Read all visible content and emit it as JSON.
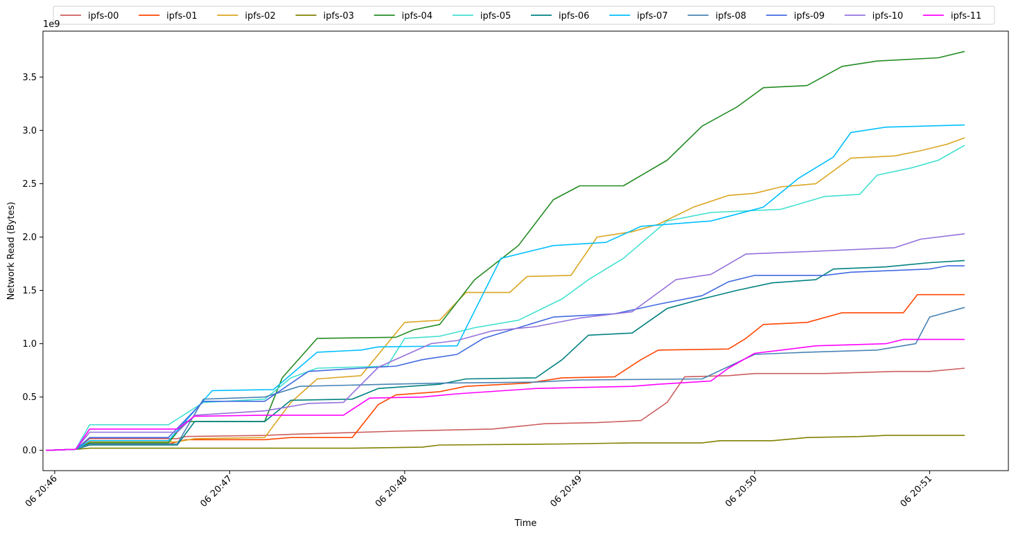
{
  "chart_data": {
    "type": "line",
    "title": "",
    "xlabel": "Time",
    "ylabel": "Network Read (Bytes)",
    "y_offset_label": "1e9",
    "y_unit_scale": 1000000000,
    "x_unit": "minutes",
    "xlim": [
      45.933,
      51.45
    ],
    "ylim": [
      -0.19,
      3.93
    ],
    "x_ticks": [
      {
        "value": 46,
        "label": "06 20:46"
      },
      {
        "value": 47,
        "label": "06 20:47"
      },
      {
        "value": 48,
        "label": "06 20:48"
      },
      {
        "value": 49,
        "label": "06 20:49"
      },
      {
        "value": 50,
        "label": "06 20:50"
      },
      {
        "value": 51,
        "label": "06 20:51"
      }
    ],
    "y_ticks": [
      {
        "value": 0.0,
        "label": "0.0"
      },
      {
        "value": 0.5,
        "label": "0.5"
      },
      {
        "value": 1.0,
        "label": "1.0"
      },
      {
        "value": 1.5,
        "label": "1.5"
      },
      {
        "value": 2.0,
        "label": "2.0"
      },
      {
        "value": 2.5,
        "label": "2.5"
      },
      {
        "value": 3.0,
        "label": "3.0"
      },
      {
        "value": 3.5,
        "label": "3.5"
      }
    ],
    "grid": false,
    "legend_position": "top-center, outside plot",
    "series": [
      {
        "name": "ipfs-00",
        "color": "#cd5c5c",
        "points": [
          [
            45.95,
            0
          ],
          [
            46.12,
            0.01
          ],
          [
            46.2,
            0.11
          ],
          [
            46.7,
            0.11
          ],
          [
            46.75,
            0.13
          ],
          [
            47.2,
            0.14
          ],
          [
            47.35,
            0.15
          ],
          [
            47.95,
            0.18
          ],
          [
            48.5,
            0.2
          ],
          [
            48.8,
            0.25
          ],
          [
            49.1,
            0.26
          ],
          [
            49.35,
            0.28
          ],
          [
            49.5,
            0.45
          ],
          [
            49.6,
            0.69
          ],
          [
            49.85,
            0.7
          ],
          [
            50.0,
            0.72
          ],
          [
            50.4,
            0.72
          ],
          [
            50.8,
            0.74
          ],
          [
            51.0,
            0.74
          ],
          [
            51.2,
            0.77
          ]
        ]
      },
      {
        "name": "ipfs-01",
        "color": "#ff4500",
        "points": [
          [
            45.95,
            0
          ],
          [
            46.12,
            0.01
          ],
          [
            46.2,
            0.06
          ],
          [
            46.65,
            0.06
          ],
          [
            46.75,
            0.1
          ],
          [
            47.2,
            0.1
          ],
          [
            47.35,
            0.12
          ],
          [
            47.7,
            0.12
          ],
          [
            47.85,
            0.43
          ],
          [
            47.95,
            0.52
          ],
          [
            48.2,
            0.55
          ],
          [
            48.35,
            0.6
          ],
          [
            48.7,
            0.63
          ],
          [
            48.9,
            0.68
          ],
          [
            49.2,
            0.69
          ],
          [
            49.35,
            0.85
          ],
          [
            49.45,
            0.94
          ],
          [
            49.85,
            0.95
          ],
          [
            49.95,
            1.05
          ],
          [
            50.05,
            1.18
          ],
          [
            50.3,
            1.2
          ],
          [
            50.5,
            1.29
          ],
          [
            50.85,
            1.29
          ],
          [
            50.93,
            1.46
          ],
          [
            51.2,
            1.46
          ]
        ]
      },
      {
        "name": "ipfs-02",
        "color": "#daa520",
        "points": [
          [
            45.95,
            0
          ],
          [
            46.12,
            0.01
          ],
          [
            46.2,
            0.08
          ],
          [
            46.7,
            0.08
          ],
          [
            46.8,
            0.11
          ],
          [
            47.2,
            0.12
          ],
          [
            47.35,
            0.45
          ],
          [
            47.5,
            0.67
          ],
          [
            47.75,
            0.7
          ],
          [
            47.9,
            1.0
          ],
          [
            48.0,
            1.2
          ],
          [
            48.2,
            1.22
          ],
          [
            48.35,
            1.48
          ],
          [
            48.6,
            1.48
          ],
          [
            48.7,
            1.63
          ],
          [
            48.95,
            1.64
          ],
          [
            49.1,
            2.0
          ],
          [
            49.3,
            2.05
          ],
          [
            49.45,
            2.12
          ],
          [
            49.65,
            2.28
          ],
          [
            49.85,
            2.39
          ],
          [
            50.0,
            2.41
          ],
          [
            50.15,
            2.47
          ],
          [
            50.35,
            2.5
          ],
          [
            50.55,
            2.74
          ],
          [
            50.8,
            2.76
          ],
          [
            50.95,
            2.81
          ],
          [
            51.1,
            2.87
          ],
          [
            51.2,
            2.93
          ]
        ]
      },
      {
        "name": "ipfs-03",
        "color": "#808000",
        "points": [
          [
            45.95,
            0
          ],
          [
            46.12,
            0.01
          ],
          [
            46.2,
            0.02
          ],
          [
            47.2,
            0.02
          ],
          [
            47.7,
            0.02
          ],
          [
            48.1,
            0.03
          ],
          [
            48.2,
            0.05
          ],
          [
            48.9,
            0.06
          ],
          [
            49.3,
            0.07
          ],
          [
            49.7,
            0.07
          ],
          [
            49.8,
            0.09
          ],
          [
            50.1,
            0.09
          ],
          [
            50.3,
            0.12
          ],
          [
            50.6,
            0.13
          ],
          [
            50.75,
            0.14
          ],
          [
            51.2,
            0.14
          ]
        ]
      },
      {
        "name": "ipfs-04",
        "color": "#228b22",
        "points": [
          [
            45.95,
            0
          ],
          [
            46.12,
            0.01
          ],
          [
            46.2,
            0.07
          ],
          [
            46.65,
            0.07
          ],
          [
            46.75,
            0.27
          ],
          [
            47.2,
            0.27
          ],
          [
            47.3,
            0.68
          ],
          [
            47.5,
            1.05
          ],
          [
            47.95,
            1.06
          ],
          [
            48.05,
            1.13
          ],
          [
            48.2,
            1.18
          ],
          [
            48.4,
            1.6
          ],
          [
            48.65,
            1.92
          ],
          [
            48.85,
            2.35
          ],
          [
            49.0,
            2.48
          ],
          [
            49.25,
            2.48
          ],
          [
            49.5,
            2.72
          ],
          [
            49.7,
            3.04
          ],
          [
            49.9,
            3.22
          ],
          [
            50.05,
            3.4
          ],
          [
            50.3,
            3.42
          ],
          [
            50.5,
            3.6
          ],
          [
            50.7,
            3.65
          ],
          [
            51.05,
            3.68
          ],
          [
            51.2,
            3.74
          ]
        ]
      },
      {
        "name": "ipfs-05",
        "color": "#40e0d0",
        "points": [
          [
            45.95,
            0
          ],
          [
            46.12,
            0.01
          ],
          [
            46.2,
            0.24
          ],
          [
            46.65,
            0.24
          ],
          [
            46.85,
            0.45
          ],
          [
            47.2,
            0.48
          ],
          [
            47.35,
            0.68
          ],
          [
            47.5,
            0.77
          ],
          [
            47.9,
            0.79
          ],
          [
            48.0,
            1.05
          ],
          [
            48.2,
            1.07
          ],
          [
            48.4,
            1.15
          ],
          [
            48.65,
            1.22
          ],
          [
            48.9,
            1.42
          ],
          [
            49.05,
            1.6
          ],
          [
            49.25,
            1.8
          ],
          [
            49.5,
            2.15
          ],
          [
            49.75,
            2.23
          ],
          [
            50.15,
            2.26
          ],
          [
            50.4,
            2.38
          ],
          [
            50.6,
            2.4
          ],
          [
            50.7,
            2.58
          ],
          [
            50.9,
            2.65
          ],
          [
            51.05,
            2.72
          ],
          [
            51.2,
            2.86
          ]
        ]
      },
      {
        "name": "ipfs-06",
        "color": "#008080",
        "points": [
          [
            45.95,
            0
          ],
          [
            46.12,
            0.01
          ],
          [
            46.2,
            0.05
          ],
          [
            46.7,
            0.05
          ],
          [
            46.8,
            0.27
          ],
          [
            47.2,
            0.27
          ],
          [
            47.35,
            0.47
          ],
          [
            47.7,
            0.48
          ],
          [
            47.85,
            0.58
          ],
          [
            48.2,
            0.62
          ],
          [
            48.35,
            0.67
          ],
          [
            48.75,
            0.68
          ],
          [
            48.9,
            0.85
          ],
          [
            49.05,
            1.08
          ],
          [
            49.3,
            1.1
          ],
          [
            49.5,
            1.33
          ],
          [
            49.7,
            1.42
          ],
          [
            49.9,
            1.5
          ],
          [
            50.1,
            1.57
          ],
          [
            50.35,
            1.6
          ],
          [
            50.45,
            1.7
          ],
          [
            50.75,
            1.72
          ],
          [
            51.0,
            1.76
          ],
          [
            51.2,
            1.78
          ]
        ]
      },
      {
        "name": "ipfs-07",
        "color": "#00bfff",
        "points": [
          [
            45.95,
            0
          ],
          [
            46.12,
            0.01
          ],
          [
            46.2,
            0.09
          ],
          [
            46.65,
            0.09
          ],
          [
            46.9,
            0.56
          ],
          [
            47.25,
            0.57
          ],
          [
            47.5,
            0.92
          ],
          [
            47.75,
            0.94
          ],
          [
            47.85,
            0.97
          ],
          [
            48.3,
            0.98
          ],
          [
            48.55,
            1.8
          ],
          [
            48.85,
            1.92
          ],
          [
            49.15,
            1.95
          ],
          [
            49.35,
            2.1
          ],
          [
            49.75,
            2.15
          ],
          [
            50.05,
            2.28
          ],
          [
            50.25,
            2.55
          ],
          [
            50.45,
            2.75
          ],
          [
            50.55,
            2.98
          ],
          [
            50.75,
            3.03
          ],
          [
            51.2,
            3.05
          ]
        ]
      },
      {
        "name": "ipfs-08",
        "color": "#4682b4",
        "points": [
          [
            45.95,
            0
          ],
          [
            46.12,
            0.01
          ],
          [
            46.2,
            0.06
          ],
          [
            46.7,
            0.06
          ],
          [
            46.85,
            0.48
          ],
          [
            47.2,
            0.5
          ],
          [
            47.4,
            0.6
          ],
          [
            47.9,
            0.62
          ],
          [
            48.2,
            0.63
          ],
          [
            48.75,
            0.64
          ],
          [
            49.0,
            0.66
          ],
          [
            49.7,
            0.67
          ],
          [
            50.0,
            0.9
          ],
          [
            50.3,
            0.92
          ],
          [
            50.7,
            0.94
          ],
          [
            50.92,
            1.0
          ],
          [
            51.0,
            1.25
          ],
          [
            51.2,
            1.34
          ]
        ]
      },
      {
        "name": "ipfs-09",
        "color": "#4169e1",
        "points": [
          [
            45.95,
            0
          ],
          [
            46.12,
            0.01
          ],
          [
            46.2,
            0.12
          ],
          [
            46.65,
            0.12
          ],
          [
            46.85,
            0.46
          ],
          [
            47.2,
            0.46
          ],
          [
            47.45,
            0.74
          ],
          [
            47.75,
            0.77
          ],
          [
            47.95,
            0.79
          ],
          [
            48.1,
            0.85
          ],
          [
            48.3,
            0.9
          ],
          [
            48.45,
            1.05
          ],
          [
            48.65,
            1.15
          ],
          [
            48.85,
            1.25
          ],
          [
            49.2,
            1.28
          ],
          [
            49.45,
            1.37
          ],
          [
            49.7,
            1.45
          ],
          [
            49.85,
            1.58
          ],
          [
            50.0,
            1.64
          ],
          [
            50.4,
            1.64
          ],
          [
            50.55,
            1.67
          ],
          [
            51.0,
            1.7
          ],
          [
            51.1,
            1.73
          ],
          [
            51.2,
            1.73
          ]
        ]
      },
      {
        "name": "ipfs-10",
        "color": "#9370db",
        "points": [
          [
            45.95,
            0
          ],
          [
            46.12,
            0.01
          ],
          [
            46.2,
            0.17
          ],
          [
            46.7,
            0.17
          ],
          [
            46.8,
            0.33
          ],
          [
            47.2,
            0.37
          ],
          [
            47.45,
            0.44
          ],
          [
            47.65,
            0.45
          ],
          [
            47.85,
            0.78
          ],
          [
            48.15,
            1.0
          ],
          [
            48.3,
            1.03
          ],
          [
            48.5,
            1.12
          ],
          [
            48.75,
            1.16
          ],
          [
            49.0,
            1.24
          ],
          [
            49.3,
            1.3
          ],
          [
            49.55,
            1.6
          ],
          [
            49.75,
            1.65
          ],
          [
            49.95,
            1.84
          ],
          [
            50.4,
            1.87
          ],
          [
            50.8,
            1.9
          ],
          [
            50.95,
            1.98
          ],
          [
            51.2,
            2.03
          ]
        ]
      },
      {
        "name": "ipfs-11",
        "color": "#ff00ff",
        "points": [
          [
            45.95,
            0
          ],
          [
            46.12,
            0.01
          ],
          [
            46.2,
            0.2
          ],
          [
            46.7,
            0.2
          ],
          [
            46.8,
            0.32
          ],
          [
            47.2,
            0.33
          ],
          [
            47.65,
            0.33
          ],
          [
            47.8,
            0.49
          ],
          [
            48.1,
            0.5
          ],
          [
            48.3,
            0.53
          ],
          [
            48.75,
            0.58
          ],
          [
            49.3,
            0.6
          ],
          [
            49.45,
            0.62
          ],
          [
            49.75,
            0.65
          ],
          [
            49.85,
            0.77
          ],
          [
            50.0,
            0.91
          ],
          [
            50.35,
            0.98
          ],
          [
            50.75,
            1.0
          ],
          [
            50.85,
            1.04
          ],
          [
            51.2,
            1.04
          ]
        ]
      }
    ]
  }
}
